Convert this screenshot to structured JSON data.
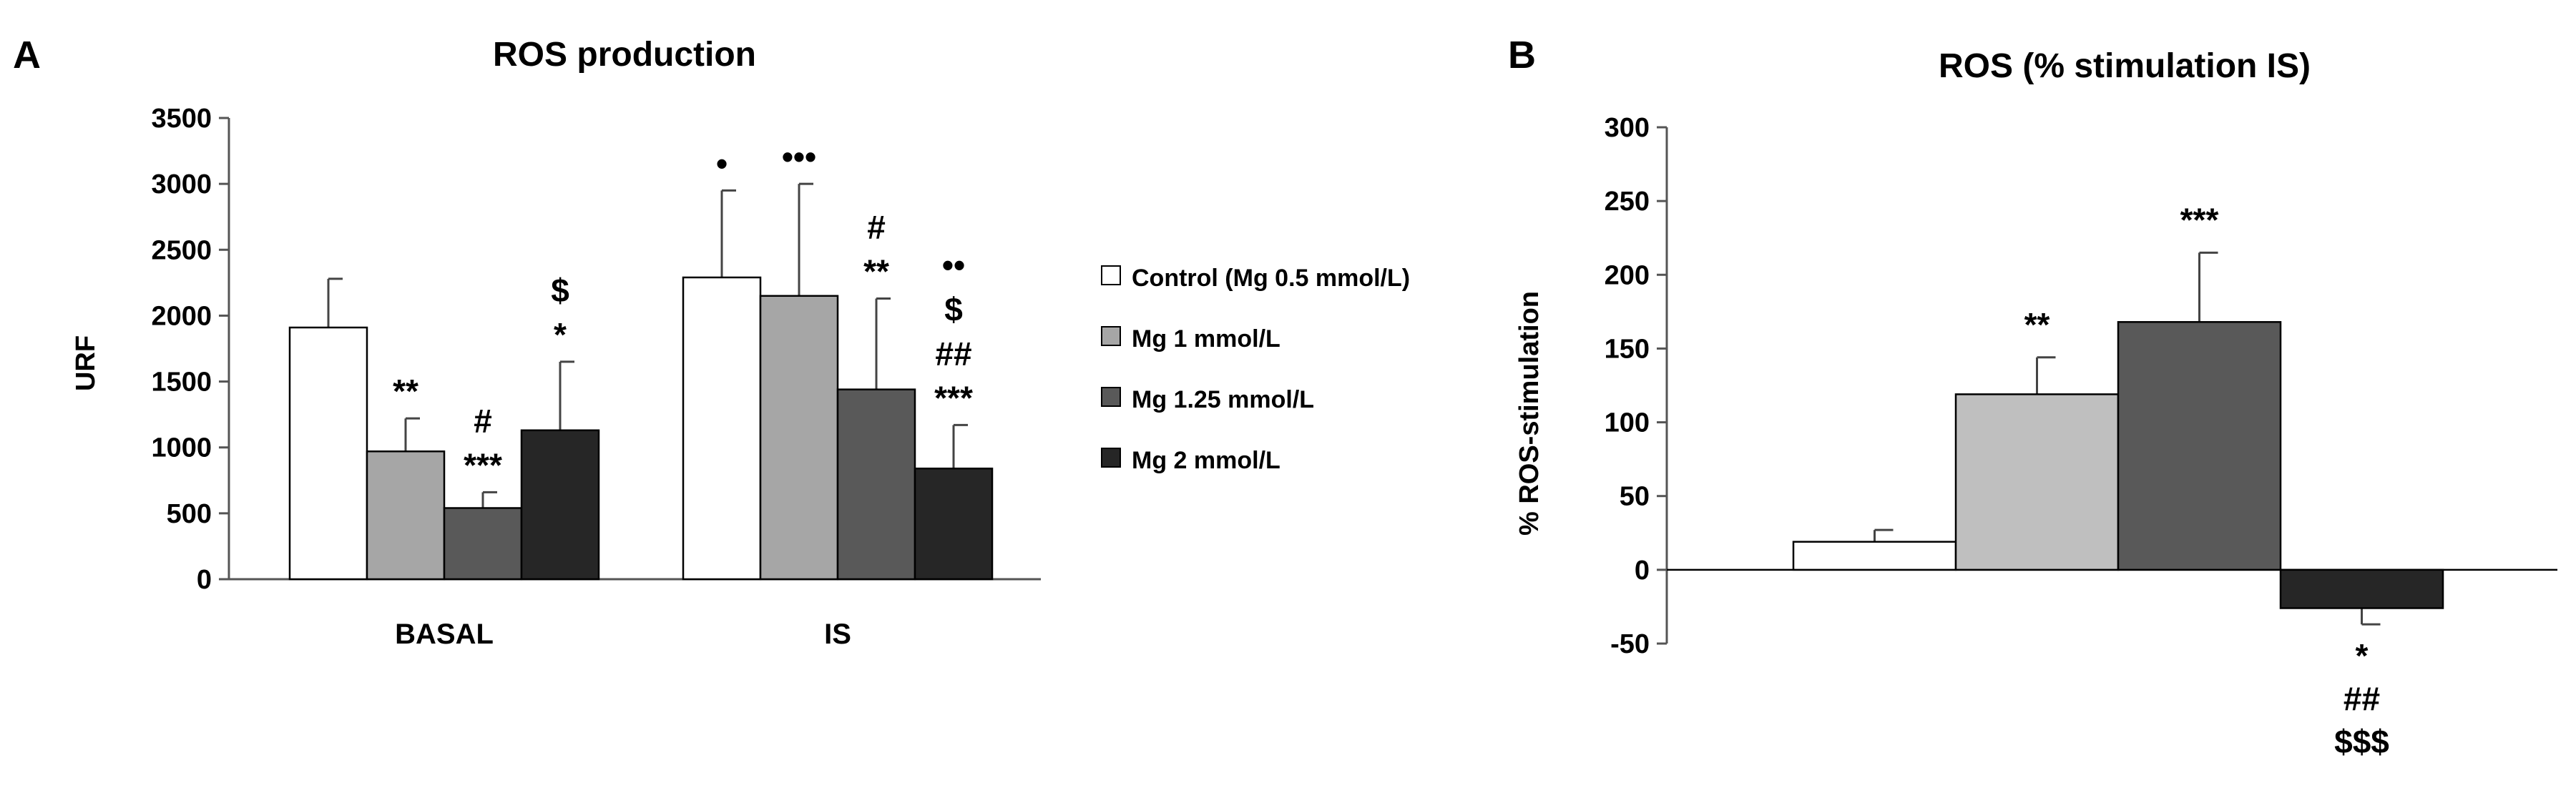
{
  "chart_data": [
    {
      "panel": "A",
      "type": "bar",
      "title": "ROS production",
      "ylabel": "URF",
      "xlabel": "",
      "ylim": [
        0,
        3500
      ],
      "yticks": [
        "0",
        "500",
        "1000",
        "1500",
        "2000",
        "2500",
        "3000",
        "3500"
      ],
      "categories": [
        "BASAL",
        "IS"
      ],
      "series": [
        {
          "name": "Control (Mg 0.5 mmol/L)",
          "color": "#ffffff",
          "values": [
            1910,
            2290
          ],
          "errors": [
            370,
            660
          ]
        },
        {
          "name": "Mg 1 mmol/L",
          "color": "#a6a6a6",
          "values": [
            970,
            2150
          ],
          "errors": [
            250,
            850
          ]
        },
        {
          "name": "Mg 1.25 mmol/L",
          "color": "#595959",
          "values": [
            540,
            1440
          ],
          "errors": [
            120,
            690
          ]
        },
        {
          "name": "Mg 2 mmol/L",
          "color": "#262626",
          "values": [
            1130,
            840
          ],
          "errors": [
            520,
            330
          ]
        }
      ],
      "annotations": [
        [
          "",
          "",
          ""
        ],
        [
          "**",
          "",
          ""
        ],
        [
          "***",
          "#",
          ""
        ],
        [
          "*",
          "$",
          ""
        ],
        [
          "",
          "",
          "•"
        ],
        [
          "",
          "",
          "•••"
        ],
        [
          "**",
          "#",
          ""
        ],
        [
          "***",
          "##",
          "$",
          "••"
        ]
      ],
      "legend_position": "right"
    },
    {
      "panel": "B",
      "type": "bar",
      "title": "ROS (% stimulation  IS)",
      "ylabel": "% ROS-stimulation",
      "xlabel": "",
      "ylim": [
        -50,
        300
      ],
      "yticks": [
        "-50",
        "0",
        "50",
        "100",
        "150",
        "200",
        "250",
        "300"
      ],
      "categories": [
        ""
      ],
      "series": [
        {
          "name": "Control (Mg 0.5 mmol/L)",
          "color": "#ffffff",
          "values": [
            19
          ],
          "errors": [
            8
          ]
        },
        {
          "name": "Mg 1 mmol/L",
          "color": "#bfbfbf",
          "values": [
            119
          ],
          "errors": [
            25
          ]
        },
        {
          "name": "Mg 1.25 mmol/L",
          "color": "#595959",
          "values": [
            168
          ],
          "errors": [
            47
          ]
        },
        {
          "name": "Mg 2 mmol/L",
          "color": "#262626",
          "values": [
            -26
          ],
          "errors": [
            11
          ]
        }
      ],
      "annotations": [
        [],
        [
          "**"
        ],
        [
          "***"
        ],
        [
          "*",
          "##",
          "$$$"
        ]
      ]
    }
  ]
}
